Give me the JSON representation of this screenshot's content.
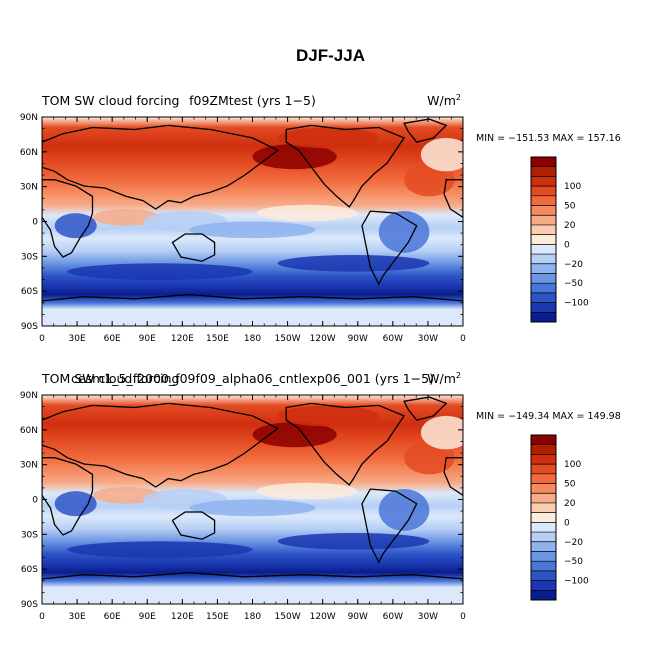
{
  "figure": {
    "title": "DJF-JJA"
  },
  "chart_data": [
    {
      "type": "heatmap",
      "title_left": "TOM SW cloud forcing",
      "title_center": "f09ZMtest (yrs 1−5)",
      "units": "W/m",
      "units_exponent": "2",
      "min_label": "MIN = −151.53",
      "max_label": "MAX = 157.16",
      "x_ticks": [
        "0",
        "30E",
        "60E",
        "90E",
        "120E",
        "150E",
        "180",
        "150W",
        "120W",
        "90W",
        "60W",
        "30W",
        "0"
      ],
      "y_ticks": [
        "90N",
        "60N",
        "30N",
        "0",
        "30S",
        "60S",
        "90S"
      ],
      "colorbar_levels": [
        "100",
        "50",
        "20",
        "0",
        "−20",
        "−50",
        "−100"
      ]
    },
    {
      "type": "heatmap",
      "title_left": "TOM SW cloud forcing",
      "title_center": "cesm1_5_f2000_f09f09_alpha06_cntlexp06_001 (yrs 1−5)",
      "units": "W/m",
      "units_exponent": "2",
      "min_label": "MIN = −149.34",
      "max_label": "MAX = 149.98",
      "x_ticks": [
        "0",
        "30E",
        "60E",
        "90E",
        "120E",
        "150E",
        "180",
        "150W",
        "120W",
        "90W",
        "60W",
        "30W",
        "0"
      ],
      "y_ticks": [
        "90N",
        "60N",
        "30N",
        "0",
        "30S",
        "60S",
        "90S"
      ],
      "colorbar_levels": [
        "100",
        "50",
        "20",
        "0",
        "−20",
        "−50",
        "−100"
      ]
    }
  ],
  "colors": {
    "scale": [
      "#8b0000",
      "#b01f00",
      "#cf2f0f",
      "#e44b22",
      "#f06a3d",
      "#f58a60",
      "#f7aa87",
      "#fbcdb0",
      "#fdebdc",
      "#dce9fb",
      "#b6cff5",
      "#8fb3ee",
      "#6b96e4",
      "#4a76d8",
      "#2e55c8",
      "#1a36b0",
      "#0a1d8c"
    ],
    "land_outline": "#000000"
  }
}
